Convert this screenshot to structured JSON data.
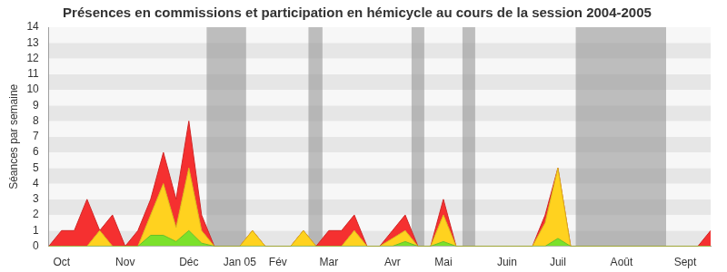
{
  "chart_data": {
    "type": "area",
    "title": "Présences en commissions et participation en hémicycle au cours de la session 2004-2005",
    "y_label": "Séances par semaine",
    "categories": [
      null,
      "Oct",
      null,
      null,
      null,
      null,
      "Nov",
      null,
      null,
      null,
      null,
      "Déc",
      null,
      null,
      null,
      "Jan 05",
      null,
      null,
      "Fév",
      null,
      null,
      null,
      "Mar",
      null,
      null,
      null,
      null,
      "Avr",
      null,
      null,
      null,
      "Mai",
      null,
      null,
      null,
      null,
      "Juin",
      null,
      null,
      null,
      "Juil",
      null,
      null,
      null,
      null,
      "Août",
      null,
      null,
      null,
      null,
      "Sept",
      null,
      null
    ],
    "series": [
      {
        "color": "#7be12b",
        "values": [
          0,
          0,
          0,
          0,
          0,
          0,
          0,
          0,
          0.7,
          0.7,
          0.3,
          1,
          0.2,
          0,
          0,
          0,
          0,
          0,
          0,
          0,
          0,
          0,
          0,
          0,
          0,
          0,
          0,
          0,
          0.3,
          0,
          0,
          0.3,
          0,
          0,
          0,
          0,
          0,
          0,
          0,
          0,
          0.5,
          0,
          0,
          0,
          0,
          0,
          0,
          0,
          0,
          0,
          0,
          0,
          0
        ]
      },
      {
        "color": "#ffd21f",
        "values": [
          0,
          0,
          0,
          0,
          1,
          0,
          0,
          0,
          1.3,
          3.3,
          0.9,
          4,
          0.8,
          0,
          0,
          0,
          1,
          0,
          0,
          0,
          1,
          0,
          0,
          0,
          1,
          0,
          0,
          0.5,
          0.7,
          0,
          0,
          1.7,
          0,
          0,
          0,
          0,
          0,
          0,
          0,
          1.5,
          4.5,
          0,
          0,
          0,
          0,
          0,
          0,
          0,
          0,
          0,
          0,
          0,
          0
        ]
      },
      {
        "color": "#f53030",
        "values": [
          0,
          1,
          1,
          3,
          0,
          2,
          0,
          1,
          1,
          2,
          1.8,
          3,
          1,
          0,
          0,
          0,
          0,
          0,
          0,
          0,
          0,
          0,
          1,
          1,
          1,
          0,
          0,
          0.5,
          1,
          0,
          0,
          1,
          0,
          0,
          0,
          0,
          0,
          0,
          0,
          0.5,
          0,
          0,
          0,
          0,
          0,
          0,
          0,
          0,
          0,
          0,
          0,
          0,
          1
        ]
      }
    ],
    "shaded_ranges": [
      [
        12.4,
        15.5
      ],
      [
        20.4,
        21.5
      ],
      [
        28.5,
        29.5
      ],
      [
        32.5,
        33.5
      ],
      [
        41.4,
        48.5
      ]
    ],
    "stacked": true,
    "grid": true,
    "ylim": [
      0,
      14
    ],
    "yticks": [
      0,
      1,
      2,
      3,
      4,
      5,
      6,
      7,
      8,
      9,
      10,
      11,
      12,
      13,
      14
    ]
  }
}
